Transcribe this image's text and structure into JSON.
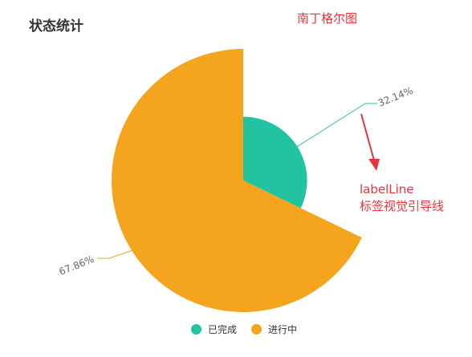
{
  "panel": {
    "title": "状态统计"
  },
  "annotations": {
    "title": "南丁格尔图",
    "labelline_line1": "labelLine",
    "labelline_line2": "标签视觉引导线",
    "color": "#e8353b"
  },
  "chart_data": {
    "type": "pie",
    "subtype": "nightingale-rose",
    "series": [
      {
        "name": "已完成",
        "value": 32.14,
        "label": "32.14%",
        "color": "#22c3a0"
      },
      {
        "name": "进行中",
        "value": 67.86,
        "label": "67.86%",
        "color": "#f4a41d"
      }
    ],
    "legend": {
      "position": "bottom-center",
      "items": [
        "已完成",
        "进行中"
      ]
    },
    "label_line": true
  }
}
